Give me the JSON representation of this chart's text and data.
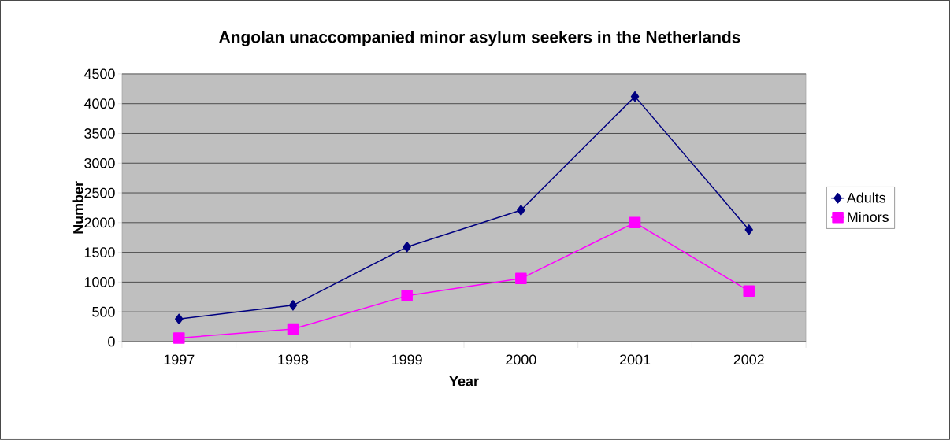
{
  "chart_data": {
    "type": "line",
    "title": "Angolan unaccompanied minor asylum seekers in the Netherlands",
    "xlabel": "Year",
    "ylabel": "Number",
    "categories": [
      "1997",
      "1998",
      "1999",
      "2000",
      "2001",
      "2002"
    ],
    "series": [
      {
        "name": "Adults",
        "color": "#000080",
        "marker": "diamond",
        "values": [
          380,
          610,
          1590,
          2210,
          4120,
          1880
        ]
      },
      {
        "name": "Minors",
        "color": "#ff00ff",
        "marker": "square",
        "values": [
          60,
          210,
          770,
          1060,
          2000,
          850
        ]
      }
    ],
    "ylim": [
      0,
      4500
    ],
    "yticks": [
      0,
      500,
      1000,
      1500,
      2000,
      2500,
      3000,
      3500,
      4000,
      4500
    ],
    "grid": "y",
    "legend": "right",
    "line_style": "solid"
  }
}
